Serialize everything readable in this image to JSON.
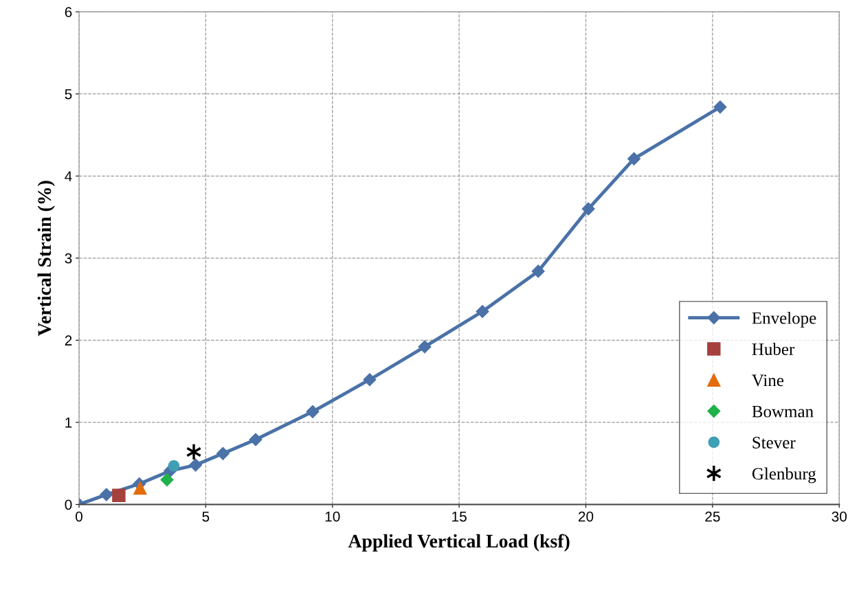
{
  "chart_data": {
    "type": "line",
    "xlabel": "Applied Vertical Load (ksf)",
    "ylabel": "Vertical Strain (%)",
    "xlim": [
      0,
      30
    ],
    "xticks": [
      0,
      5,
      10,
      15,
      20,
      25,
      30
    ],
    "ylim": [
      0,
      6
    ],
    "yticks": [
      0,
      1,
      2,
      3,
      4,
      5,
      6
    ],
    "grid": true,
    "legend": "bottom right",
    "line_style": "solid",
    "series": [
      {
        "name": "Envelope",
        "marker": "diamond",
        "color": "#4a72a8",
        "x": [
          0,
          1.08,
          2.38,
          3.6,
          4.6,
          5.68,
          6.97,
          9.22,
          11.47,
          13.64,
          15.92,
          18.12,
          20.1,
          21.9,
          25.3
        ],
        "values": [
          0,
          0.12,
          0.25,
          0.41,
          0.48,
          0.62,
          0.79,
          1.13,
          1.52,
          1.92,
          2.35,
          2.84,
          3.6,
          4.21,
          4.84
        ]
      },
      {
        "name": "Huber",
        "type": "scatter",
        "marker": "square",
        "color": "#a5403d",
        "x": [
          1.57
        ],
        "values": [
          0.11
        ]
      },
      {
        "name": "Vine",
        "type": "scatter",
        "marker": "triangle",
        "color": "#e36c0a",
        "x": [
          2.41
        ],
        "values": [
          0.2
        ]
      },
      {
        "name": "Bowman",
        "type": "scatter",
        "marker": "diamond",
        "color": "#1fb14a",
        "x": [
          3.47
        ],
        "values": [
          0.3
        ]
      },
      {
        "name": "Stever",
        "type": "scatter",
        "marker": "circle",
        "color": "#3f9fb5",
        "x": [
          3.74
        ],
        "values": [
          0.47
        ]
      },
      {
        "name": "Glenburg",
        "type": "scatter",
        "marker": "cross",
        "color": "#000000",
        "x": [
          4.53
        ],
        "values": [
          0.64
        ]
      }
    ]
  }
}
